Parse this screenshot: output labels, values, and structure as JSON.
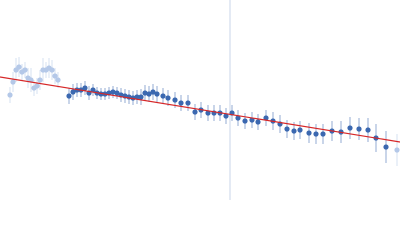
{
  "chart_data": {
    "type": "scatter",
    "xlim": [
      0,
      400
    ],
    "ylim": [
      0,
      200
    ],
    "series": [
      {
        "color": "#b4c8e8",
        "x": [
          10,
          13,
          16,
          19,
          22,
          25,
          28,
          31,
          34,
          37,
          40,
          43,
          46,
          49,
          52,
          55,
          58,
          397
        ],
        "values": [
          105,
          118,
          130,
          133,
          128,
          130,
          122,
          120,
          112,
          114,
          120,
          130,
          130,
          132,
          130,
          124,
          120,
          50
        ],
        "errors": [
          8,
          10,
          12,
          10,
          8,
          8,
          10,
          12,
          8,
          8,
          10,
          12,
          8,
          10,
          10,
          8,
          8,
          16
        ]
      },
      {
        "color": "#3b68b0",
        "x": [
          69,
          73,
          77,
          81,
          85,
          89,
          93,
          97,
          101,
          105,
          109,
          113,
          117,
          121,
          125,
          129,
          133,
          137,
          141,
          145,
          149,
          153,
          157,
          163,
          168,
          175,
          181,
          188,
          195,
          201,
          208,
          214,
          220,
          226,
          232,
          238,
          245,
          252,
          258,
          266,
          273,
          280,
          287,
          294,
          300,
          309,
          316,
          323,
          332,
          341,
          350,
          359,
          368,
          376,
          386
        ],
        "values": [
          104,
          108,
          110,
          110,
          112,
          107,
          110,
          107,
          106,
          106,
          107,
          108,
          107,
          105,
          104,
          103,
          102,
          103,
          103,
          107,
          106,
          108,
          106,
          104,
          102,
          100,
          97,
          97,
          88,
          90,
          87,
          87,
          87,
          84,
          87,
          82,
          79,
          80,
          78,
          82,
          79,
          76,
          71,
          69,
          70,
          67,
          66,
          66,
          69,
          68,
          72,
          71,
          70,
          62,
          53
        ],
        "errors": [
          8,
          8,
          7,
          7,
          7,
          7,
          6,
          6,
          6,
          6,
          6,
          6,
          6,
          7,
          7,
          7,
          7,
          7,
          8,
          8,
          8,
          8,
          8,
          8,
          8,
          8,
          8,
          8,
          8,
          8,
          8,
          8,
          8,
          8,
          8,
          8,
          8,
          8,
          8,
          8,
          9,
          9,
          9,
          9,
          9,
          10,
          10,
          10,
          10,
          11,
          11,
          11,
          12,
          14,
          16
        ]
      }
    ],
    "fit": {
      "color": "#d62728",
      "x": [
        0,
        400
      ],
      "values": [
        123,
        58
      ]
    },
    "vline": {
      "x": 230,
      "color": "#c8d4ea"
    }
  }
}
